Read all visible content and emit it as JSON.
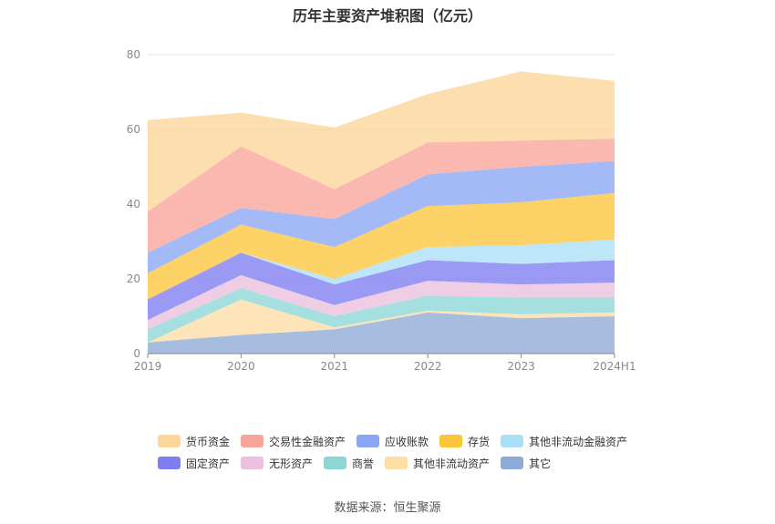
{
  "chart_data": {
    "type": "area",
    "stacked": true,
    "title": "历年主要资产堆积图（亿元）",
    "categories": [
      "2019",
      "2020",
      "2021",
      "2022",
      "2023",
      "2024H1"
    ],
    "yticks": [
      0,
      20,
      40,
      60,
      80
    ],
    "ylim": [
      0,
      80
    ],
    "grid": true,
    "legend_position": "bottom",
    "series_bottom_to_top": [
      {
        "name": "其它",
        "color": "#8eaad6",
        "values": [
          3.0,
          5.0,
          6.5,
          11.0,
          9.5,
          10.0
        ]
      },
      {
        "name": "其他非流动资产",
        "color": "#fddea5",
        "values": [
          0.0,
          9.5,
          0.5,
          0.5,
          1.0,
          1.0
        ]
      },
      {
        "name": "商誉",
        "color": "#8cd6d6",
        "values": [
          3.5,
          3.0,
          3.0,
          4.0,
          4.5,
          4.0
        ]
      },
      {
        "name": "无形资产",
        "color": "#ebbfdd",
        "values": [
          2.5,
          3.5,
          3.0,
          4.0,
          3.5,
          4.0
        ]
      },
      {
        "name": "固定资产",
        "color": "#7d7ef2",
        "values": [
          5.5,
          6.0,
          5.5,
          5.5,
          5.5,
          6.0
        ]
      },
      {
        "name": "其他非流动金融资产",
        "color": "#abdff7",
        "values": [
          0.0,
          0.0,
          1.5,
          3.5,
          5.0,
          5.5
        ]
      },
      {
        "name": "存货",
        "color": "#fcc63c",
        "values": [
          7.0,
          7.5,
          8.5,
          11.0,
          11.5,
          12.5
        ]
      },
      {
        "name": "应收账款",
        "color": "#8aa6f5",
        "values": [
          5.5,
          4.5,
          7.5,
          8.5,
          9.5,
          8.5
        ]
      },
      {
        "name": "交易性金融资产",
        "color": "#f9a49b",
        "values": [
          11.0,
          16.5,
          8.0,
          8.5,
          7.0,
          6.0
        ]
      },
      {
        "name": "货币资金",
        "color": "#fdd698",
        "values": [
          24.5,
          9.0,
          16.5,
          13.0,
          18.5,
          15.5
        ]
      }
    ],
    "legend_rows": [
      [
        {
          "name": "货币资金",
          "color": "#fdd698"
        },
        {
          "name": "交易性金融资产",
          "color": "#f9a49b"
        },
        {
          "name": "应收账款",
          "color": "#8aa6f5"
        },
        {
          "name": "存货",
          "color": "#fcc63c"
        },
        {
          "name": "其他非流动金融资产",
          "color": "#abdff7"
        }
      ],
      [
        {
          "name": "固定资产",
          "color": "#7d7ef2"
        },
        {
          "name": "无形资产",
          "color": "#ebbfdd"
        },
        {
          "name": "商誉",
          "color": "#8cd6d6"
        },
        {
          "name": "其他非流动资产",
          "color": "#fddea5"
        },
        {
          "name": "其它",
          "color": "#8eaad6"
        }
      ]
    ]
  },
  "source": "数据来源：恒生聚源"
}
